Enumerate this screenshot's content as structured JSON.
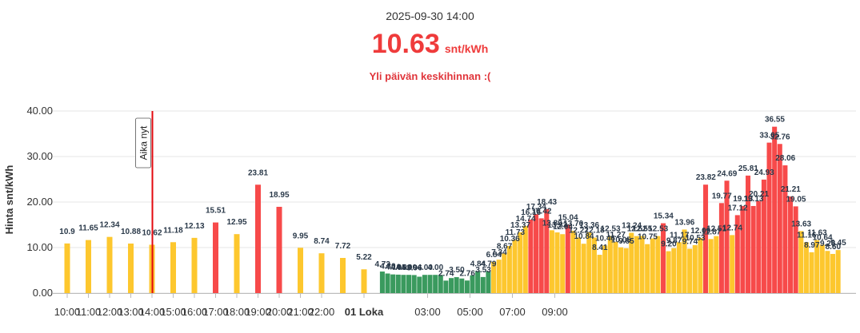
{
  "header": {
    "timestamp": "2025-09-30 14:00",
    "price": "10.63",
    "unit": "snt/kWh",
    "status": "Yli päivän keskihinnan :("
  },
  "colors": {
    "high": "#f74a4a",
    "mid": "#fdc72e",
    "low": "#3a9a5e",
    "now": "#e3080f"
  },
  "chart_data": {
    "type": "bar",
    "ylabel": "Hinta snt/kWh",
    "ylim": [
      0,
      40
    ],
    "yticks": [
      "0.00",
      "10.00",
      "20.00",
      "30.00",
      "40.00"
    ],
    "now_label": "Aika nyt",
    "now_time": "14:00",
    "xticks": [
      "10:00",
      "12:00",
      "14:00",
      "16:00",
      "18:00",
      "20:00",
      "22:00",
      "01 Loka",
      "03:00",
      "05:00",
      "07:00",
      "09:00",
      "11:00",
      "13:00",
      "15:00",
      "17:00",
      "19:00",
      "21:00"
    ],
    "hourly": [
      {
        "time": "10:00",
        "value": 10.9
      },
      {
        "time": "11:00",
        "value": 11.65
      },
      {
        "time": "12:00",
        "value": 12.34
      },
      {
        "time": "13:00",
        "value": 10.88
      },
      {
        "time": "14:00",
        "value": 10.62
      },
      {
        "time": "15:00",
        "value": 11.18
      },
      {
        "time": "16:00",
        "value": 12.13
      },
      {
        "time": "17:00",
        "value": 15.51
      },
      {
        "time": "18:00",
        "value": 12.95
      },
      {
        "time": "19:00",
        "value": 23.81
      },
      {
        "time": "20:00",
        "value": 18.95
      },
      {
        "time": "21:00",
        "value": 9.95
      },
      {
        "time": "22:00",
        "value": 8.74
      },
      {
        "time": "23:00",
        "value": 7.72
      },
      {
        "time": "00:00",
        "value": 5.22
      }
    ],
    "quarter_start": "01:00",
    "quarter_values": [
      4.73,
      4.3,
      4.1,
      4.05,
      4.0,
      4.0,
      3.96,
      3.6,
      4.0,
      4.0,
      4.0,
      3.98,
      2.74,
      3.3,
      3.5,
      3.2,
      2.76,
      3.9,
      4.84,
      3.53,
      4.79,
      6.84,
      7.34,
      8.67,
      10.36,
      11.73,
      13.37,
      14.74,
      16.16,
      17.34,
      16.42,
      18.43,
      13.8,
      13.33,
      12.94,
      15.04,
      13.7,
      12.22,
      10.84,
      13.36,
      12.18,
      8.41,
      10.46,
      12.53,
      11.27,
      10.05,
      9.85,
      13.24,
      12.52,
      12.55,
      10.75,
      12.0,
      12.53,
      15.34,
      9.2,
      9.87,
      11.17,
      13.96,
      9.74,
      10.53,
      12.09,
      23.82,
      11.87,
      12.51,
      19.77,
      24.69,
      12.74,
      17.12,
      19.13,
      25.81,
      19.13,
      20.21,
      24.93,
      33.05,
      36.55,
      32.76,
      28.06,
      21.21,
      19.05,
      13.63,
      11.16,
      8.97,
      11.63,
      10.64,
      9.26,
      8.6,
      9.45
    ],
    "labeled": [
      {
        "i": 0,
        "t": "4.73"
      },
      {
        "i": 1,
        "t": "4.30"
      },
      {
        "i": 2,
        "t": "4.10"
      },
      {
        "i": 3,
        "t": "4.05"
      },
      {
        "i": 4,
        "t": "4.00"
      },
      {
        "i": 5,
        "t": "4.00"
      },
      {
        "i": 6,
        "t": "3.96"
      },
      {
        "i": 8,
        "t": "4.00"
      },
      {
        "i": 10,
        "t": "4.00"
      },
      {
        "i": 12,
        "t": "2.74"
      },
      {
        "i": 14,
        "t": "3.50"
      },
      {
        "i": 16,
        "t": "2.76"
      },
      {
        "i": 18,
        "t": "4.84"
      },
      {
        "i": 19,
        "t": "3.53"
      },
      {
        "i": 20,
        "t": "4.79"
      },
      {
        "i": 21,
        "t": "6.84"
      },
      {
        "i": 22,
        "t": "7.34"
      },
      {
        "i": 23,
        "t": "8.67"
      },
      {
        "i": 24,
        "t": "10.36"
      },
      {
        "i": 25,
        "t": "11.73"
      },
      {
        "i": 26,
        "t": "13.37"
      },
      {
        "i": 27,
        "t": "14.74"
      },
      {
        "i": 28,
        "t": "16.16"
      },
      {
        "i": 29,
        "t": "17.34"
      },
      {
        "i": 30,
        "t": "16.42"
      },
      {
        "i": 31,
        "t": "18.43"
      },
      {
        "i": 32,
        "t": "13.80"
      },
      {
        "i": 33,
        "t": "13.33"
      },
      {
        "i": 34,
        "t": "12.94"
      },
      {
        "i": 35,
        "t": "15.04"
      },
      {
        "i": 36,
        "t": "13.70"
      },
      {
        "i": 37,
        "t": "12.22"
      },
      {
        "i": 38,
        "t": "10.84"
      },
      {
        "i": 39,
        "t": "13.36"
      },
      {
        "i": 40,
        "t": "12.18"
      },
      {
        "i": 41,
        "t": "8.41"
      },
      {
        "i": 42,
        "t": "10.46"
      },
      {
        "i": 43,
        "t": "12.53"
      },
      {
        "i": 44,
        "t": "11.27"
      },
      {
        "i": 45,
        "t": "10.05"
      },
      {
        "i": 46,
        "t": "9.85"
      },
      {
        "i": 47,
        "t": "13.24"
      },
      {
        "i": 48,
        "t": "12.52"
      },
      {
        "i": 49,
        "t": "12.55"
      },
      {
        "i": 50,
        "t": "10.75"
      },
      {
        "i": 52,
        "t": "12.53"
      },
      {
        "i": 53,
        "t": "15.34"
      },
      {
        "i": 54,
        "t": "9.20"
      },
      {
        "i": 55,
        "t": "9.87"
      },
      {
        "i": 56,
        "t": "11.17"
      },
      {
        "i": 57,
        "t": "13.96"
      },
      {
        "i": 58,
        "t": "9.74"
      },
      {
        "i": 59,
        "t": "10.53"
      },
      {
        "i": 60,
        "t": "12.09"
      },
      {
        "i": 61,
        "t": "23.82"
      },
      {
        "i": 62,
        "t": "11.87"
      },
      {
        "i": 63,
        "t": "12.51"
      },
      {
        "i": 64,
        "t": "19.77"
      },
      {
        "i": 65,
        "t": "24.69"
      },
      {
        "i": 66,
        "t": "12.74"
      },
      {
        "i": 67,
        "t": "17.12"
      },
      {
        "i": 68,
        "t": "19.13"
      },
      {
        "i": 69,
        "t": "25.81"
      },
      {
        "i": 70,
        "t": "19.13"
      },
      {
        "i": 71,
        "t": "20.21"
      },
      {
        "i": 72,
        "t": "24.93"
      },
      {
        "i": 73,
        "t": "33.05"
      },
      {
        "i": 74,
        "t": "36.55"
      },
      {
        "i": 75,
        "t": "32.76"
      },
      {
        "i": 76,
        "t": "28.06"
      },
      {
        "i": 77,
        "t": "21.21"
      },
      {
        "i": 78,
        "t": "19.05"
      },
      {
        "i": 79,
        "t": "13.63"
      },
      {
        "i": 80,
        "t": "11.16"
      },
      {
        "i": 81,
        "t": "8.97"
      },
      {
        "i": 82,
        "t": "11.63"
      },
      {
        "i": 83,
        "t": "10.64"
      },
      {
        "i": 84,
        "t": "9.26"
      },
      {
        "i": 85,
        "t": "8.60"
      },
      {
        "i": 86,
        "t": "9.45"
      }
    ]
  }
}
